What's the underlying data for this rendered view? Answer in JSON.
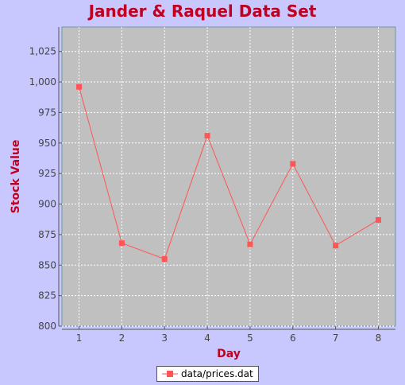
{
  "chart_data": {
    "type": "line",
    "title": "Jander & Raquel Data Set",
    "xlabel": "Day",
    "ylabel": "Stock Value",
    "x": [
      1,
      2,
      3,
      4,
      5,
      6,
      7,
      8
    ],
    "series": [
      {
        "name": "data/prices.dat",
        "values": [
          996,
          868,
          855,
          956,
          867,
          933,
          866,
          887
        ]
      }
    ],
    "xlim": [
      0.6,
      8.4
    ],
    "ylim": [
      800,
      1045
    ],
    "xticks": [
      1,
      2,
      3,
      4,
      5,
      6,
      7,
      8
    ],
    "yticks": [
      800,
      825,
      850,
      875,
      900,
      925,
      950,
      975,
      1000,
      1025
    ],
    "ytick_labels": [
      "800",
      "825",
      "850",
      "875",
      "900",
      "925",
      "950",
      "975",
      "1,000",
      "1,025"
    ],
    "grid": true,
    "legend_position": "bottom",
    "colors": {
      "background": "#c8c8ff",
      "plot_background": "#c0c0c0",
      "series": "#ff5555",
      "title": "#c00020",
      "grid": "#ffffff"
    }
  }
}
